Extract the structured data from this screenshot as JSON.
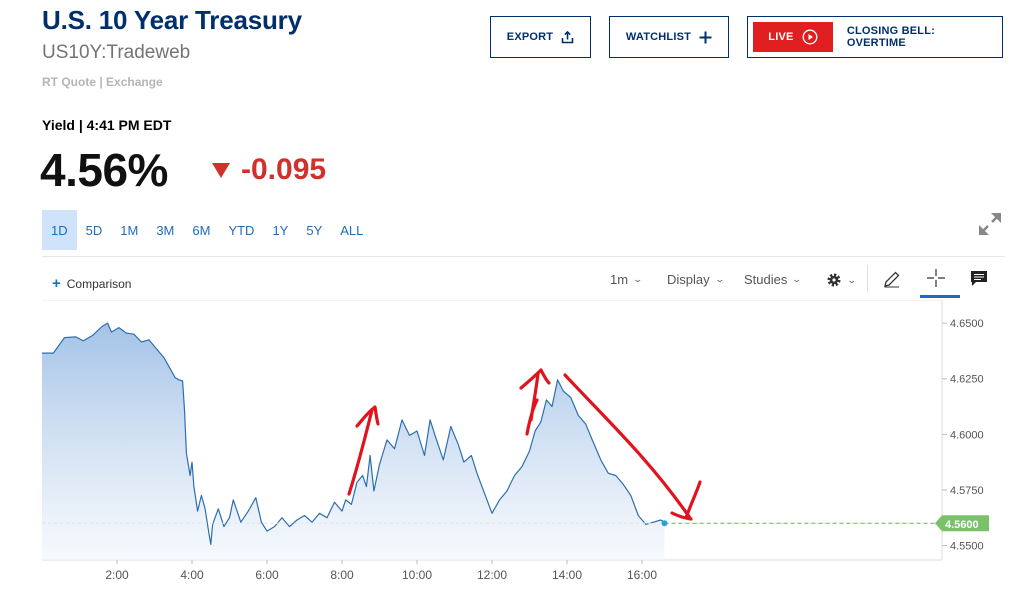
{
  "header": {
    "title": "U.S. 10 Year Treasury",
    "symbol": "US10Y:Tradeweb",
    "quote_source": "RT Quote | Exchange",
    "export_label": "EXPORT",
    "watchlist_label": "WATCHLIST",
    "live_label": "LIVE",
    "live_show": "CLOSING BELL: OVERTIME"
  },
  "quote": {
    "yield_label": "Yield | 4:41 PM EDT",
    "price": "4.56%",
    "change": "-0.095",
    "change_color": "#d0312d"
  },
  "ranges": [
    "1D",
    "5D",
    "1M",
    "3M",
    "6M",
    "YTD",
    "1Y",
    "5Y",
    "ALL"
  ],
  "active_range": "1D",
  "toolbar": {
    "comparison_label": "Comparison",
    "interval_label": "1m",
    "display_label": "Display",
    "studies_label": "Studies"
  },
  "icons": {
    "export": "upload-icon",
    "watchlist": "plus-icon",
    "live": "play-circle-icon",
    "expand": "expand-icon",
    "settings": "gear-icon",
    "draw": "pencil-icon",
    "crosshair": "crosshair-icon",
    "comment": "comment-icon"
  },
  "chart_data": {
    "type": "area",
    "title": "",
    "xlabel": "",
    "ylabel": "",
    "x_ticks": [
      "2:00",
      "4:00",
      "6:00",
      "8:00",
      "10:00",
      "12:00",
      "14:00",
      "16:00"
    ],
    "y_ticks": [
      "4.5500",
      "4.5750",
      "4.6000",
      "4.6250",
      "4.6500"
    ],
    "xlim": [
      0.0,
      24.0
    ],
    "ylim": [
      4.5435,
      4.655
    ],
    "grid": false,
    "last_value_label": "4.5600",
    "last_value": 4.56,
    "colors": {
      "line": "#2c6fb0",
      "fill_top": "#9fc0e6",
      "fill_bottom": "#f3f7fc",
      "last_value": "#7ac26a",
      "annotation": "#e0141e"
    },
    "series": [
      {
        "x": [
          0.0,
          0.3,
          0.6,
          0.9,
          1.1,
          1.35,
          1.6,
          1.75,
          1.85,
          2.05,
          2.25,
          2.45,
          2.65,
          2.85,
          3.05,
          3.25,
          3.45,
          3.55,
          3.65,
          3.75,
          3.8,
          3.85,
          3.95,
          4.0,
          4.05,
          4.15,
          4.25,
          4.35,
          4.45,
          4.5,
          4.55,
          4.7,
          4.85,
          5.0,
          5.1,
          5.3,
          5.5,
          5.7,
          5.85,
          6.0,
          6.2,
          6.4,
          6.6,
          6.8,
          7.0,
          7.2,
          7.4,
          7.6,
          7.8,
          8.0,
          8.1,
          8.25,
          8.4,
          8.55,
          8.65,
          8.75,
          8.85,
          9.0,
          9.2,
          9.4,
          9.6,
          9.8,
          10.0,
          10.2,
          10.35,
          10.5,
          10.7,
          10.9,
          11.1,
          11.25,
          11.45,
          11.6,
          11.8,
          12.0,
          12.2,
          12.4,
          12.6,
          12.8,
          13.0,
          13.15,
          13.3,
          13.45,
          13.6,
          13.75,
          13.9,
          14.1,
          14.3,
          14.5,
          14.7,
          14.9,
          15.1,
          15.3,
          15.5,
          15.7,
          15.9,
          16.1,
          16.3,
          16.5,
          16.6
        ],
        "y": [
          4.6365,
          4.6365,
          4.6435,
          4.6438,
          4.642,
          4.6445,
          4.6485,
          4.65,
          4.646,
          4.648,
          4.6455,
          4.645,
          4.6415,
          4.6425,
          4.6385,
          4.6345,
          4.6285,
          4.6255,
          4.6245,
          4.624,
          4.611,
          4.5915,
          4.5815,
          4.5875,
          4.5765,
          4.5655,
          4.5725,
          4.5665,
          4.5555,
          4.5505,
          4.5595,
          4.5665,
          4.5585,
          4.5625,
          4.5705,
          4.5605,
          4.5655,
          4.5715,
          4.5605,
          4.5565,
          4.5585,
          4.5625,
          4.5585,
          4.5615,
          4.5635,
          4.5605,
          4.5645,
          4.5625,
          4.5695,
          4.5655,
          4.5705,
          4.5685,
          4.5785,
          4.5815,
          4.5765,
          4.5905,
          4.5745,
          4.5865,
          4.5975,
          4.5935,
          4.6065,
          4.5995,
          4.6015,
          4.5905,
          4.6065,
          4.5985,
          4.5885,
          4.6035,
          4.5955,
          4.5875,
          4.5905,
          4.5825,
          4.5735,
          4.5645,
          4.5705,
          4.5745,
          4.5815,
          4.5855,
          4.5925,
          4.6015,
          4.6055,
          4.6155,
          4.6125,
          4.6245,
          4.6195,
          4.6165,
          4.6085,
          4.6045,
          4.5965,
          4.5885,
          4.5825,
          4.5815,
          4.5775,
          4.5725,
          4.5635,
          4.5595,
          4.5605,
          4.5615,
          4.5605
        ]
      }
    ]
  }
}
